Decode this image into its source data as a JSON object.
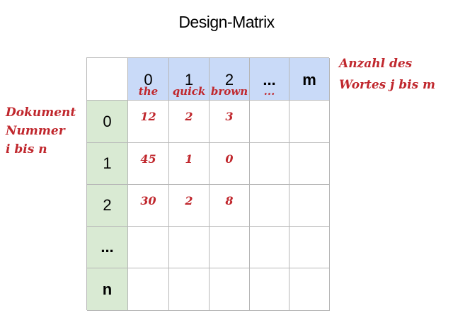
{
  "title": "Design-Matrix",
  "matrix": {
    "column_headers": [
      {
        "index": "0",
        "word": "the"
      },
      {
        "index": "1",
        "word": "quick"
      },
      {
        "index": "2",
        "word": "brown"
      },
      {
        "index": "...",
        "word": "..."
      },
      {
        "index": "m",
        "word": ""
      }
    ],
    "row_headers": [
      "0",
      "1",
      "2",
      "...",
      "n"
    ],
    "rows": [
      [
        "12",
        "2",
        "3",
        "",
        ""
      ],
      [
        "45",
        "1",
        "0",
        "",
        ""
      ],
      [
        "30",
        "2",
        "8",
        "",
        ""
      ],
      [
        "",
        "",
        "",
        "",
        ""
      ],
      [
        "",
        "",
        "",
        "",
        ""
      ]
    ]
  },
  "annotations": {
    "rows_label": [
      "Dokument",
      "Nummer",
      "i bis n"
    ],
    "columns_label": [
      "Anzahl des",
      "Wortes j bis m"
    ]
  },
  "colors": {
    "header_column_bg": "#c9daf8",
    "header_row_bg": "#d9ead3",
    "annotation_color": "#c0272d",
    "grid_line": "#b7b7b7"
  }
}
